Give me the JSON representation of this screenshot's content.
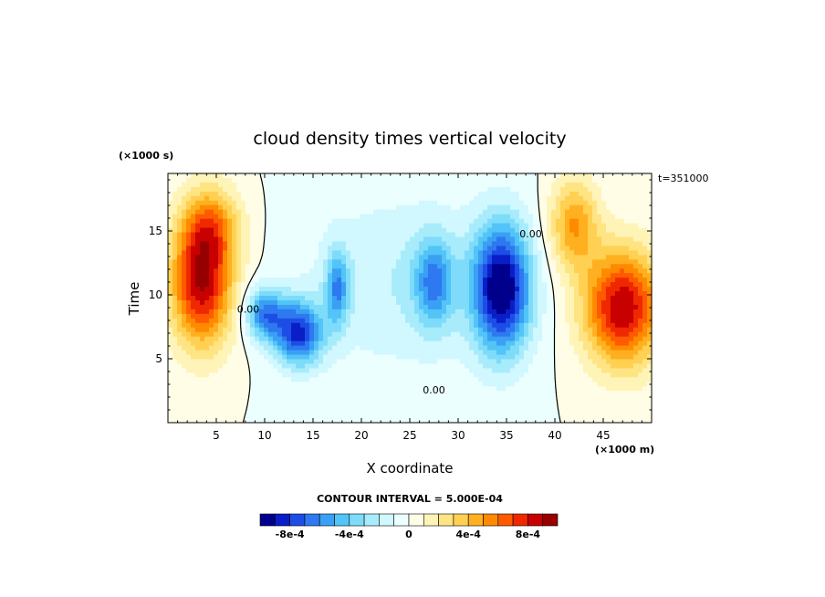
{
  "chart_data": {
    "type": "heatmap",
    "title": "cloud density times vertical velocity",
    "xlabel": "X coordinate",
    "ylabel": "Time",
    "x_units": "(×1000 m)",
    "y_units": "(×1000 s)",
    "time_label": "t=351000",
    "contour_interval_label": "CONTOUR INTERVAL = 5.000E-04",
    "xlim": [
      0,
      50
    ],
    "ylim": [
      0,
      19.5
    ],
    "x_ticks": [
      5,
      10,
      15,
      20,
      25,
      30,
      35,
      40,
      45
    ],
    "y_ticks": [
      5,
      10,
      15
    ],
    "contour_labels": [
      {
        "text": "0.00",
        "x": 27.5,
        "y": 2.3
      },
      {
        "text": "0.00",
        "x": 37.5,
        "y": 14.5
      },
      {
        "text": "0.00",
        "x": 8.3,
        "y": 8.6
      }
    ],
    "colorbar": {
      "levels": [
        "-1e-3",
        "-9e-4",
        "-8e-4",
        "-7e-4",
        "-6e-4",
        "-5e-4",
        "-4e-4",
        "-3e-4",
        "-2e-4",
        "-1e-4",
        "0",
        "1e-4",
        "2e-4",
        "3e-4",
        "4e-4",
        "5e-4",
        "6e-4",
        "7e-4",
        "8e-4",
        "9e-4",
        "1e-3"
      ],
      "tick_labels": [
        {
          "text": "-8e-4",
          "index": 2
        },
        {
          "text": "-4e-4",
          "index": 6
        },
        {
          "text": "0",
          "index": 10
        },
        {
          "text": "4e-4",
          "index": 14
        },
        {
          "text": "8e-4",
          "index": 18
        }
      ],
      "colors": [
        "#00008c",
        "#0a1ec8",
        "#1c4ee6",
        "#2e78f0",
        "#3aa0f4",
        "#52c4f8",
        "#7edcfa",
        "#a8ecfc",
        "#d0f8fe",
        "#ecffff",
        "#fffde6",
        "#fff4b8",
        "#ffe484",
        "#ffd052",
        "#ffb020",
        "#ff8a00",
        "#ff5a00",
        "#f02800",
        "#c80000",
        "#960000"
      ]
    },
    "features": [
      {
        "sign": "positive",
        "x": 3.5,
        "y": 11.0,
        "sx": 3.2,
        "sy": 5.0,
        "amp": 9
      },
      {
        "sign": "positive",
        "x": 47.0,
        "y": 9.0,
        "sx": 4.0,
        "sy": 4.5,
        "amp": 9
      },
      {
        "sign": "positive",
        "x": 4.5,
        "y": 15.5,
        "sx": 3.0,
        "sy": 3.0,
        "amp": 4
      },
      {
        "sign": "positive",
        "x": 42.0,
        "y": 15.5,
        "sx": 2.5,
        "sy": 3.5,
        "amp": 5
      },
      {
        "sign": "negative",
        "x": 34.5,
        "y": 10.5,
        "sx": 3.0,
        "sy": 5.0,
        "amp": 10
      },
      {
        "sign": "negative",
        "x": 27.5,
        "y": 11.0,
        "sx": 2.0,
        "sy": 3.5,
        "amp": 5
      },
      {
        "sign": "negative",
        "x": 13.5,
        "y": 7.0,
        "sx": 2.5,
        "sy": 2.5,
        "amp": 8
      },
      {
        "sign": "negative",
        "x": 10.0,
        "y": 8.5,
        "sx": 2.0,
        "sy": 2.0,
        "amp": 6
      },
      {
        "sign": "negative",
        "x": 17.5,
        "y": 10.5,
        "sx": 1.2,
        "sy": 3.0,
        "amp": 5
      },
      {
        "sign": "negative",
        "x": 24.0,
        "y": 11.0,
        "sx": 10.0,
        "sy": 7.0,
        "amp": 2
      }
    ]
  }
}
